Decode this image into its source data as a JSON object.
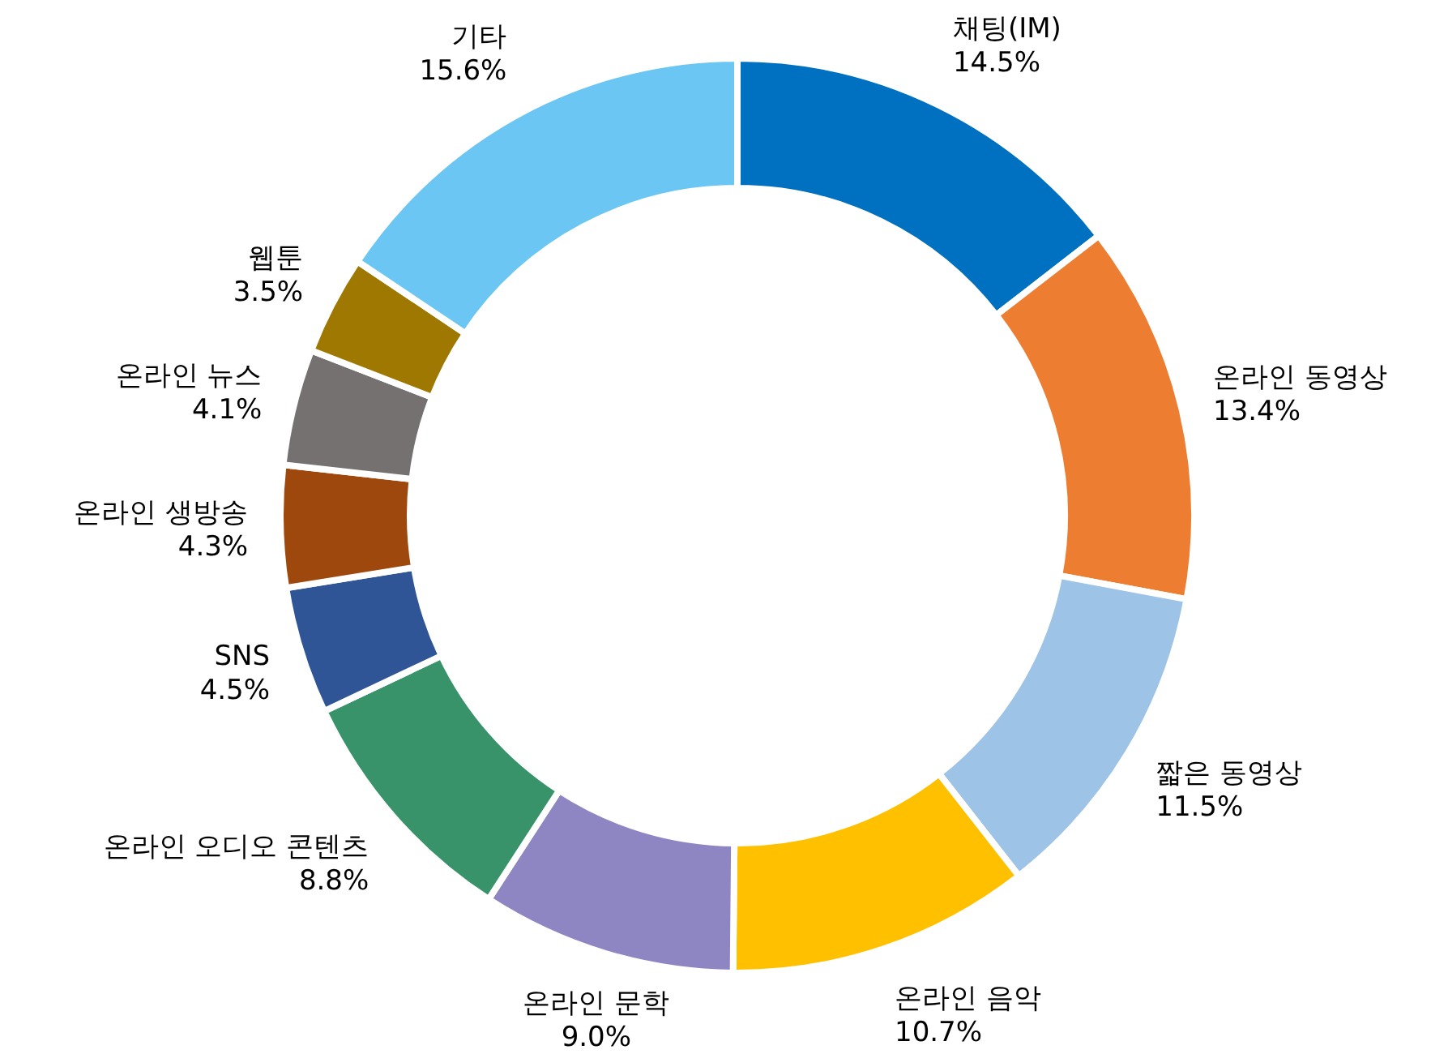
{
  "chart_data": {
    "type": "donut",
    "categories": [
      "채팅(IM)",
      "온라인 동영상",
      "짧은 동영상",
      "온라인 음악",
      "온라인 문학",
      "온라인 오디오 콘텐츠",
      "SNS",
      "온라인 생방송",
      "온라인 뉴스",
      "웹툰",
      "기타"
    ],
    "values": [
      14.5,
      13.4,
      11.5,
      10.7,
      9.0,
      8.8,
      4.5,
      4.3,
      4.1,
      3.5,
      15.6
    ],
    "value_labels": [
      "14.5%",
      "13.4%",
      "11.5%",
      "10.7%",
      "9.0%",
      "8.8%",
      "4.5%",
      "4.3%",
      "4.1%",
      "3.5%",
      "15.6%"
    ],
    "colors": [
      "#0070c0",
      "#ed7d31",
      "#9dc3e6",
      "#ffc000",
      "#8e86c2",
      "#38936a",
      "#2f5597",
      "#9e480e",
      "#767171",
      "#9e7800",
      "#6cc6f4"
    ]
  }
}
